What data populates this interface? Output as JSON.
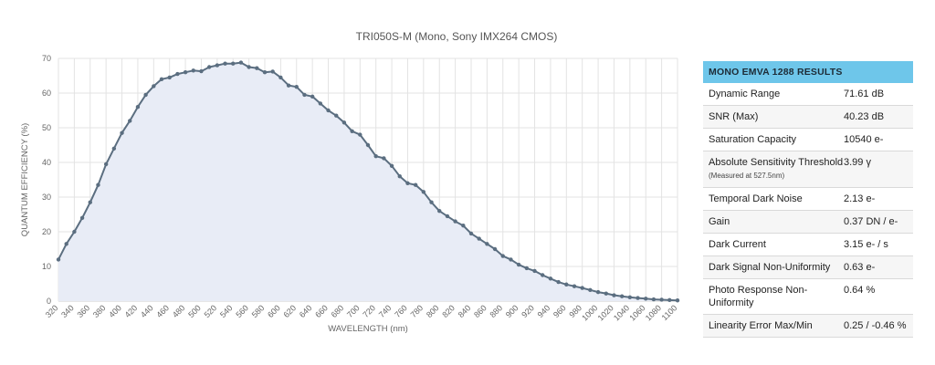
{
  "chart_data": {
    "type": "line",
    "title": "TRI050S-M (Mono, Sony IMX264 CMOS)",
    "xlabel": "WAVELENGTH (nm)",
    "ylabel": "QUANTUM EFFICIENCY (%)",
    "xlim": [
      320,
      1100
    ],
    "ylim": [
      0,
      70
    ],
    "yticks": [
      0,
      10,
      20,
      30,
      40,
      50,
      60,
      70
    ],
    "xticks": [
      320,
      340,
      360,
      380,
      400,
      420,
      440,
      460,
      480,
      500,
      520,
      540,
      560,
      580,
      600,
      620,
      640,
      660,
      680,
      700,
      720,
      740,
      760,
      780,
      800,
      820,
      840,
      860,
      880,
      900,
      920,
      940,
      960,
      980,
      1000,
      1020,
      1040,
      1060,
      1080,
      1100
    ],
    "grid": true,
    "fill": true,
    "line_color": "#5b6e80",
    "fill_color": "#e8ecf6",
    "series": [
      {
        "x": [
          320,
          330,
          340,
          350,
          360,
          370,
          380,
          390,
          400,
          410,
          420,
          430,
          440,
          450,
          460,
          470,
          480,
          490,
          500,
          510,
          520,
          530,
          540,
          550,
          560,
          570,
          580,
          590,
          600,
          610,
          620,
          630,
          640,
          650,
          660,
          670,
          680,
          690,
          700,
          710,
          720,
          730,
          740,
          750,
          760,
          770,
          780,
          790,
          800,
          810,
          820,
          830,
          840,
          850,
          860,
          870,
          880,
          890,
          900,
          910,
          920,
          930,
          940,
          950,
          960,
          970,
          980,
          990,
          1000,
          1010,
          1020,
          1030,
          1040,
          1050,
          1060,
          1070,
          1080,
          1090,
          1100
        ],
        "y": [
          12,
          16.5,
          20,
          24,
          28.5,
          33.5,
          39.5,
          44,
          48.5,
          52,
          56,
          59.5,
          62,
          64,
          64.5,
          65.5,
          66,
          66.5,
          66.3,
          67.5,
          68,
          68.5,
          68.5,
          68.8,
          67.5,
          67.2,
          66,
          66.2,
          64.5,
          62.2,
          61.8,
          59.5,
          59,
          57,
          55,
          53.5,
          51.5,
          49,
          48,
          45,
          41.8,
          41.2,
          39,
          36,
          34,
          33.5,
          31.5,
          28.5,
          26,
          24.5,
          23,
          21.8,
          19.5,
          18,
          16.5,
          15,
          13,
          12,
          10.5,
          9.5,
          8.7,
          7.5,
          6.5,
          5.5,
          4.8,
          4.3,
          3.8,
          3.2,
          2.6,
          2.2,
          1.7,
          1.4,
          1.1,
          0.9,
          0.7,
          0.5,
          0.4,
          0.3,
          0.2
        ]
      }
    ]
  },
  "results": {
    "header": "MONO EMVA 1288 RESULTS",
    "rows": [
      {
        "label": "Dynamic Range",
        "value": "71.61 dB"
      },
      {
        "label": "SNR (Max)",
        "value": "40.23 dB"
      },
      {
        "label": "Saturation Capacity",
        "value": "10540 e-"
      },
      {
        "label": "Absolute Sensitivity Threshold",
        "label_note": "(Measured at 527.5nm)",
        "value": "3.99 γ"
      },
      {
        "label": "Temporal Dark Noise",
        "value": "2.13 e-"
      },
      {
        "label": "Gain",
        "value": "0.37 DN / e-"
      },
      {
        "label": "Dark Current",
        "value": "3.15 e- / s"
      },
      {
        "label": "Dark Signal Non-Uniformity",
        "value": "0.63 e-"
      },
      {
        "label": "Photo Response Non-Uniformity",
        "value": "0.64 %"
      },
      {
        "label": "Linearity Error Max/Min",
        "value": "0.25 / -0.46 %"
      }
    ]
  }
}
